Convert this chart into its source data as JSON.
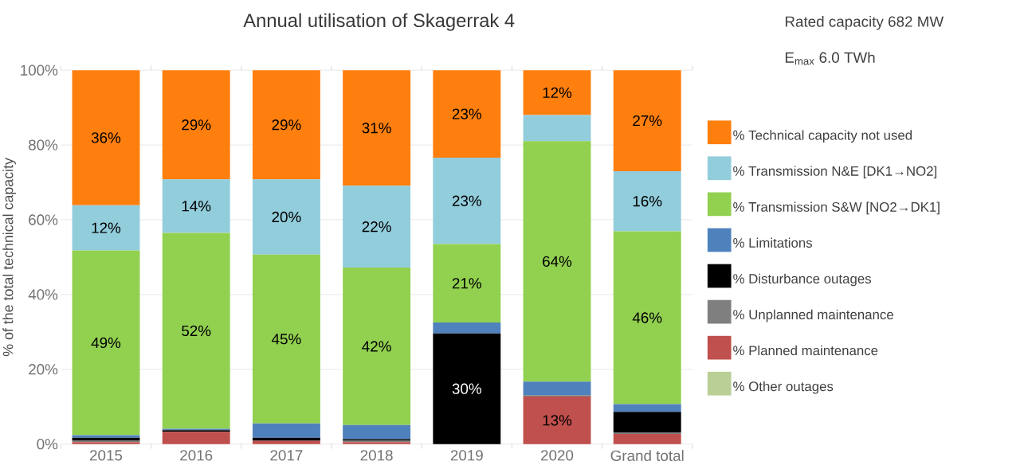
{
  "chart_data": {
    "type": "bar",
    "stacked": true,
    "title": "Annual utilisation of Skagerrak 4",
    "annotations": [
      "Rated capacity 682 MW",
      "E$_{max}$ 6.0 TWh"
    ],
    "ylabel": "% of the total technical capacity",
    "categories": [
      "2015",
      "2016",
      "2017",
      "2018",
      "2019",
      "2020",
      "Grand total"
    ],
    "ylim": [
      0,
      100
    ],
    "yticks": [
      {
        "value": 0,
        "label": "0%"
      },
      {
        "value": 20,
        "label": "20%"
      },
      {
        "value": 40,
        "label": "40%"
      },
      {
        "value": 60,
        "label": "60%"
      },
      {
        "value": 80,
        "label": "80%"
      },
      {
        "value": 100,
        "label": "100%"
      }
    ],
    "grid": "y",
    "legend": "right",
    "series": [
      {
        "name": "% Other outages",
        "color": "#b9cf96",
        "values": [
          0,
          0,
          0,
          0,
          0,
          0,
          0
        ]
      },
      {
        "name": "% Planned maintenance",
        "color": "#c0504d",
        "values": [
          0.5,
          3.3,
          0.9,
          0.5,
          0,
          12.7,
          2.7
        ],
        "value_labels": [
          null,
          null,
          null,
          null,
          null,
          "13%",
          null
        ]
      },
      {
        "name": "% Unplanned maintenance",
        "color": "#7f7f7f",
        "values": [
          0.4,
          0,
          0,
          0.4,
          0,
          0.4,
          0.4
        ]
      },
      {
        "name": "% Disturbance outages",
        "color": "#000000",
        "values": [
          0.8,
          0.4,
          0.8,
          0.4,
          29.6,
          0,
          5.5
        ],
        "value_labels": [
          null,
          null,
          null,
          null,
          "30%",
          null,
          null
        ]
      },
      {
        "name": "% Limitations",
        "color": "#4f81bd",
        "values": [
          0.7,
          0.4,
          3.8,
          3.8,
          2.9,
          3.6,
          2.1
        ]
      },
      {
        "name": "% Transmission S&W [NO2→DK1]",
        "color": "#92d050",
        "values": [
          49.4,
          52.4,
          45.2,
          42.1,
          21,
          64.3,
          46.2
        ],
        "value_labels": [
          "49%",
          "52%",
          "45%",
          "42%",
          "21%",
          "64%",
          "46%"
        ]
      },
      {
        "name": "% Transmission N&E [DK1→NO2]",
        "color": "#92cddc",
        "values": [
          12.1,
          14.3,
          20.1,
          21.9,
          23.1,
          7.0,
          16.1
        ],
        "value_labels": [
          "12%",
          "14%",
          "20%",
          "22%",
          "23%",
          null,
          "16%"
        ]
      },
      {
        "name": "% Technical capacity not used",
        "color": "#ff7f0e",
        "values": [
          36.1,
          29.2,
          29.2,
          30.9,
          23.4,
          12.0,
          27.0
        ],
        "value_labels": [
          "36%",
          "29%",
          "29%",
          "31%",
          "23%",
          "12%",
          "27%"
        ]
      }
    ]
  }
}
